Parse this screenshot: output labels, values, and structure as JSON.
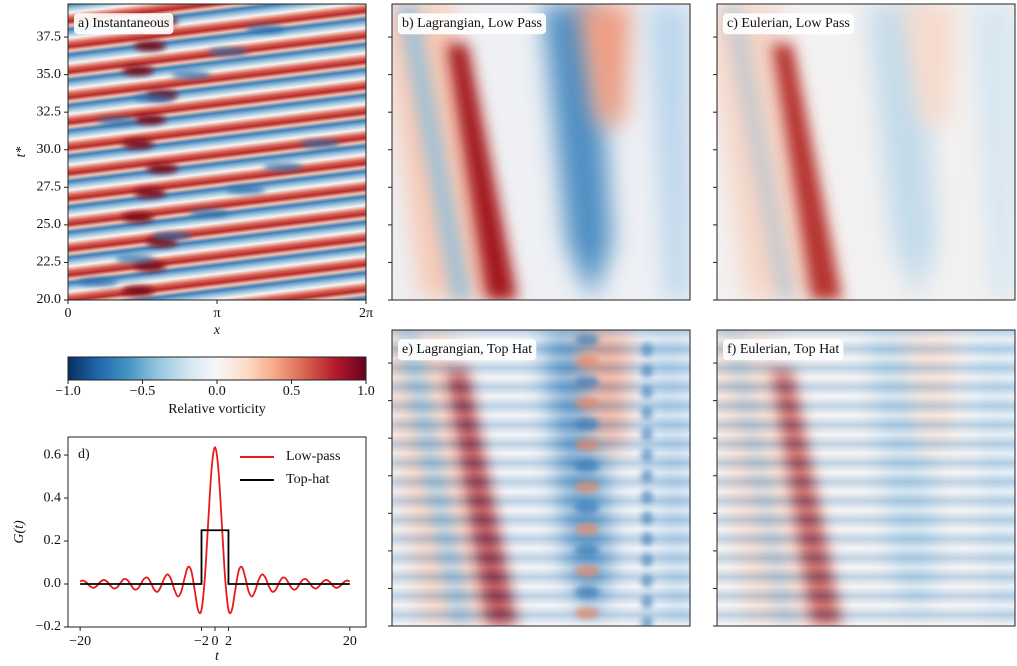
{
  "chart_data": [
    {
      "type": "heatmap",
      "title": "a) Instantaneous",
      "xlabel": "x",
      "ylabel": "t*",
      "xlim": [
        0,
        6.2832
      ],
      "ylim": [
        20,
        39.7
      ],
      "xticks": [
        0,
        {
          "value": 3.1416,
          "label": "π"
        },
        {
          "value": 6.2832,
          "label": "2π"
        }
      ],
      "yticks": [
        {
          "value": 20,
          "label": "20.0"
        },
        22.5,
        {
          "value": 25,
          "label": "25.0"
        },
        27.5,
        {
          "value": 30,
          "label": "30.0"
        },
        32.5,
        {
          "value": 35,
          "label": "35.0"
        },
        37.5
      ],
      "colorbar": {
        "label": "Relative vorticity",
        "lim": [
          -1,
          1
        ],
        "ticks": [
          {
            "value": -1,
            "label": "−1.0"
          },
          {
            "value": -0.5,
            "label": "−0.5"
          },
          {
            "value": 0,
            "label": "0.0"
          },
          0.5,
          {
            "value": 1,
            "label": "1.0"
          }
        ],
        "colors": [
          "#053061",
          "#2166ac",
          "#4393c3",
          "#92c5de",
          "#d1e5f0",
          "#f7f7f7",
          "#fddbc7",
          "#f4a582",
          "#d6604d",
          "#b2182b",
          "#67001f"
        ]
      }
    },
    {
      "type": "heatmap",
      "title": "b) Lagrangian, Low Pass"
    },
    {
      "type": "heatmap",
      "title": "c) Eulerian, Low Pass"
    },
    {
      "type": "heatmap",
      "title": "e) Lagrangian, Top Hat"
    },
    {
      "type": "heatmap",
      "title": "f) Eulerian, Top Hat"
    },
    {
      "type": "line",
      "title": "d)",
      "xlabel": "t",
      "ylabel": "G(t)",
      "xlim": [
        -21.8,
        22.4
      ],
      "ylim": [
        -0.2,
        0.684
      ],
      "xticks": [
        {
          "value": -20,
          "label": "−20"
        },
        {
          "value": -2,
          "label": "−2"
        },
        0,
        2,
        20
      ],
      "yticks": [
        {
          "value": -0.2,
          "label": "−0.2"
        },
        {
          "value": 0,
          "label": "0.0"
        },
        0.2,
        0.4,
        0.6
      ],
      "legend": "upper right",
      "series": [
        {
          "name": "Low-pass",
          "color": "#e8191b",
          "x": [
            -20,
            -19.5,
            -19,
            -18.5,
            -18,
            -17.5,
            -17,
            -16.5,
            -16,
            -15.5,
            -15,
            -14.5,
            -14,
            -13.5,
            -13,
            -12.5,
            -12,
            -11.5,
            -11,
            -10.5,
            -10,
            -9.5,
            -9,
            -8.5,
            -8,
            -7.5,
            -7,
            -6.5,
            -6,
            -5.5,
            -5,
            -4.5,
            -4,
            -3.5,
            -3,
            -2.5,
            -2,
            -1.5,
            -1,
            -0.5,
            0,
            0.5,
            1,
            1.5,
            2,
            2.5,
            3,
            3.5,
            4,
            4.5,
            5,
            5.5,
            6,
            6.5,
            7,
            7.5,
            8,
            8.5,
            9,
            9.5,
            10,
            10.5,
            11,
            11.5,
            12,
            12.5,
            13,
            13.5,
            14,
            14.5,
            15,
            15.5,
            16,
            16.5,
            17,
            17.5,
            18,
            18.5,
            19,
            19.5,
            20
          ],
          "values": [
            0.012,
            0.016,
            0.005,
            -0.011,
            -0.018,
            -0.008,
            0.01,
            0.019,
            0.011,
            -0.008,
            -0.021,
            -0.015,
            0.006,
            0.023,
            0.019,
            -0.003,
            -0.024,
            -0.023,
            0,
            0.025,
            0.029,
            0.005,
            -0.027,
            -0.036,
            -0.011,
            0.028,
            0.045,
            0.021,
            -0.028,
            -0.058,
            -0.035,
            0.029,
            0.079,
            0.06,
            -0.03,
            -0.122,
            -0.12,
            0.03,
            0.289,
            0.536,
            0.637,
            0.536,
            0.289,
            0.03,
            -0.12,
            -0.122,
            -0.03,
            0.06,
            0.079,
            0.029,
            -0.035,
            -0.058,
            -0.028,
            0.021,
            0.045,
            0.028,
            -0.011,
            -0.036,
            -0.027,
            0.005,
            0.029,
            0.025,
            0,
            -0.023,
            -0.024,
            -0.003,
            0.019,
            0.023,
            0.006,
            -0.015,
            -0.021,
            -0.008,
            0.011,
            0.019,
            0.01,
            -0.008,
            -0.018,
            -0.011,
            0.005,
            0.016,
            0.012
          ]
        },
        {
          "name": "Top-hat",
          "color": "#000000",
          "x": [
            -20,
            -2,
            -2,
            2,
            2,
            20
          ],
          "values": [
            0,
            0,
            0.25,
            0.25,
            0,
            0
          ]
        }
      ]
    }
  ]
}
